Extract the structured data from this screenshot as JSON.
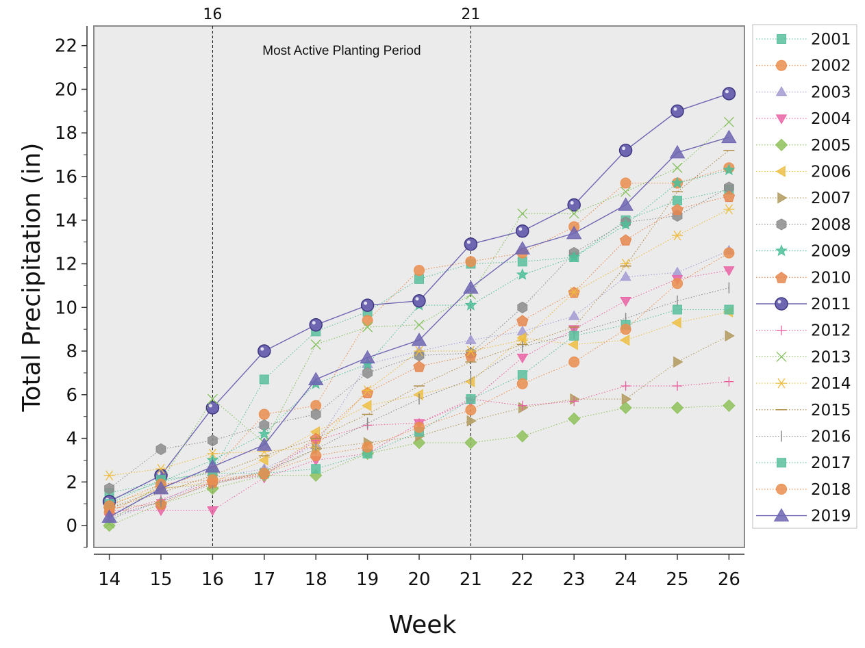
{
  "chart_data": {
    "type": "line",
    "title": "",
    "xlabel": "Week",
    "ylabel": "Total Precipitation (in)",
    "xlim": [
      13.7,
      26.3
    ],
    "ylim": [
      -1,
      22.9
    ],
    "x_ticks": [
      "14",
      "15",
      "16",
      "17",
      "18",
      "19",
      "20",
      "21",
      "22",
      "23",
      "24",
      "25",
      "26"
    ],
    "y_ticks": [
      "0",
      "2",
      "4",
      "6",
      "8",
      "10",
      "12",
      "14",
      "16",
      "18",
      "20",
      "22"
    ],
    "grid": false,
    "legend_position": "right",
    "reference_lines": [
      {
        "x": 16,
        "label": "16"
      },
      {
        "x": 21,
        "label": "21"
      }
    ],
    "annotation": {
      "text": "Most Active Planting Period",
      "x": 18.5,
      "y": 21.8
    },
    "x": [
      14,
      15,
      16,
      17,
      18,
      19,
      20,
      21,
      22,
      23,
      24,
      25,
      26
    ],
    "series": [
      {
        "name": "2001",
        "color": "#5bbf9c",
        "marker": "square",
        "values": [
          1.5,
          2.0,
          2.5,
          6.7,
          8.9,
          9.8,
          11.3,
          12.0,
          12.1,
          12.3,
          14.0,
          14.9,
          15.4
        ]
      },
      {
        "name": "2002",
        "color": "#ea8e4f",
        "marker": "circle",
        "values": [
          0.6,
          1.8,
          2.5,
          5.1,
          5.5,
          9.4,
          11.7,
          12.1,
          12.5,
          13.7,
          15.7,
          15.7,
          16.4
        ]
      },
      {
        "name": "2003",
        "color": "#a59cd3",
        "marker": "triangle-up",
        "values": [
          0.3,
          1.1,
          2.2,
          2.6,
          3.7,
          7.4,
          8.0,
          8.5,
          8.9,
          9.6,
          11.4,
          11.6,
          12.6
        ]
      },
      {
        "name": "2004",
        "color": "#ea64a6",
        "marker": "triangle-down",
        "values": [
          0.7,
          0.7,
          0.7,
          2.2,
          3.0,
          3.3,
          4.7,
          5.7,
          7.7,
          9.0,
          10.3,
          11.3,
          11.7
        ]
      },
      {
        "name": "2005",
        "color": "#8fc25c",
        "marker": "diamond",
        "values": [
          0.0,
          1.0,
          1.7,
          2.3,
          2.3,
          3.3,
          3.8,
          3.8,
          4.1,
          4.9,
          5.4,
          5.4,
          5.5
        ]
      },
      {
        "name": "2006",
        "color": "#edbf45",
        "marker": "triangle-left",
        "values": [
          1.0,
          1.7,
          2.0,
          3.0,
          4.3,
          5.5,
          6.0,
          6.6,
          8.6,
          8.3,
          8.5,
          9.3,
          9.8
        ]
      },
      {
        "name": "2007",
        "color": "#b39b5e",
        "marker": "triangle-right",
        "values": [
          0.8,
          1.7,
          1.9,
          2.4,
          3.5,
          3.8,
          4.1,
          4.8,
          5.4,
          5.8,
          5.8,
          7.5,
          8.7
        ]
      },
      {
        "name": "2008",
        "color": "#8c8c8c",
        "marker": "hexagon",
        "values": [
          1.7,
          3.5,
          3.9,
          4.6,
          5.1,
          7.0,
          7.8,
          7.9,
          10.0,
          12.5,
          13.9,
          14.2,
          15.5
        ]
      },
      {
        "name": "2009",
        "color": "#4fbf9a",
        "marker": "star",
        "values": [
          1.2,
          2.0,
          3.0,
          4.2,
          6.5,
          7.4,
          10.1,
          10.1,
          11.5,
          12.3,
          13.8,
          15.7,
          16.3
        ]
      },
      {
        "name": "2010",
        "color": "#e6874f",
        "marker": "pentagon",
        "values": [
          0.8,
          1.0,
          2.0,
          2.4,
          4.0,
          6.1,
          7.3,
          7.8,
          9.4,
          10.7,
          13.1,
          14.5,
          15.1
        ]
      },
      {
        "name": "2011",
        "color": "#6f66b2",
        "marker": "sphere",
        "line": "solid",
        "values": [
          1.1,
          2.3,
          5.4,
          8.0,
          9.2,
          10.1,
          10.3,
          12.9,
          13.5,
          14.7,
          17.2,
          19.0,
          19.8
        ]
      },
      {
        "name": "2012",
        "color": "#e8609e",
        "marker": "plus",
        "values": [
          0.5,
          1.2,
          2.0,
          2.3,
          3.9,
          4.6,
          4.7,
          5.8,
          5.5,
          5.7,
          6.4,
          6.4,
          6.6
        ]
      },
      {
        "name": "2013",
        "color": "#83c05b",
        "marker": "x",
        "values": [
          0.1,
          2.0,
          5.8,
          3.8,
          8.3,
          9.1,
          9.2,
          10.6,
          14.3,
          14.3,
          15.3,
          16.4,
          18.5
        ]
      },
      {
        "name": "2014",
        "color": "#efbb3c",
        "marker": "asterisk",
        "values": [
          2.3,
          2.6,
          3.3,
          3.4,
          3.6,
          6.2,
          8.0,
          8.0,
          8.5,
          10.7,
          12.0,
          13.3,
          14.5
        ]
      },
      {
        "name": "2015",
        "color": "#b08c48",
        "marker": "hline",
        "values": [
          0.8,
          1.5,
          2.3,
          3.2,
          4.0,
          5.1,
          6.4,
          7.5,
          8.3,
          9.1,
          11.9,
          15.3,
          17.2
        ]
      },
      {
        "name": "2016",
        "color": "#8a8a8a",
        "marker": "vline",
        "values": [
          0.4,
          1.1,
          1.9,
          2.5,
          3.5,
          4.7,
          5.8,
          6.7,
          8.2,
          8.8,
          9.5,
          10.3,
          10.9
        ]
      },
      {
        "name": "2017",
        "color": "#5bbf9c",
        "marker": "square",
        "values": [
          1.0,
          2.1,
          2.4,
          2.4,
          2.6,
          3.3,
          4.3,
          5.8,
          6.9,
          8.7,
          9.2,
          9.9,
          9.9
        ]
      },
      {
        "name": "2018",
        "color": "#ea8e4f",
        "marker": "circle",
        "values": [
          0.9,
          1.9,
          2.1,
          2.4,
          3.2,
          3.6,
          4.5,
          5.3,
          6.5,
          7.5,
          9.0,
          11.1,
          12.5
        ]
      },
      {
        "name": "2019",
        "color": "#6f66b2",
        "marker": "triangle-up",
        "line": "solid",
        "values": [
          0.4,
          1.7,
          2.7,
          3.7,
          6.7,
          7.7,
          8.5,
          10.9,
          12.7,
          13.4,
          14.7,
          17.1,
          17.8
        ]
      }
    ]
  }
}
